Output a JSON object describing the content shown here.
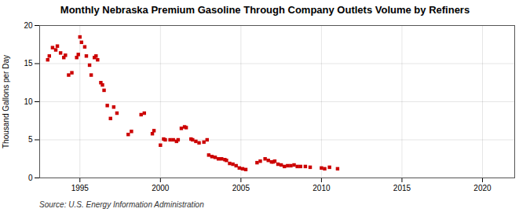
{
  "chart_data": {
    "type": "scatter",
    "title": "Monthly Nebraska Premium Gasoline Through Company Outlets Volume by Refiners",
    "ylabel": "Thousand Gallons per Day",
    "source": "Source: U.S. Energy Information Administration",
    "color": "#cc0000",
    "marker": "square",
    "grid": true,
    "xlim": [
      1992.5,
      2022
    ],
    "ylim": [
      0,
      20
    ],
    "xticks": [
      1995,
      2000,
      2005,
      2010,
      2015,
      2020
    ],
    "yticks": [
      0,
      5,
      10,
      15,
      20
    ],
    "x": [
      1993.0,
      1993.1,
      1993.3,
      1993.5,
      1993.6,
      1993.8,
      1994.0,
      1994.1,
      1994.3,
      1994.5,
      1994.8,
      1994.9,
      1995.0,
      1995.1,
      1995.3,
      1995.4,
      1995.6,
      1995.7,
      1995.9,
      1996.0,
      1996.1,
      1996.3,
      1996.4,
      1996.5,
      1996.7,
      1996.9,
      1997.1,
      1997.3,
      1998.0,
      1998.2,
      1998.8,
      1999.0,
      1999.5,
      1999.6,
      2000.0,
      2000.2,
      2000.3,
      2000.6,
      2000.8,
      2001.0,
      2001.1,
      2001.3,
      2001.5,
      2001.6,
      2001.9,
      2002.0,
      2002.2,
      2002.4,
      2002.7,
      2002.9,
      2003.0,
      2003.2,
      2003.4,
      2003.6,
      2003.8,
      2004.0,
      2004.1,
      2004.3,
      2004.5,
      2004.7,
      2004.9,
      2005.1,
      2005.3,
      2006.0,
      2006.2,
      2006.5,
      2006.7,
      2006.9,
      2007.0,
      2007.1,
      2007.3,
      2007.5,
      2007.7,
      2007.9,
      2008.1,
      2008.3,
      2008.5,
      2008.7,
      2009.0,
      2009.3,
      2010.0,
      2010.2,
      2010.5,
      2011.0
    ],
    "values": [
      15.5,
      16.0,
      17.1,
      16.8,
      17.3,
      16.4,
      15.8,
      16.1,
      13.5,
      13.8,
      15.8,
      16.2,
      18.5,
      17.8,
      17.2,
      16.0,
      14.8,
      13.5,
      15.8,
      16.0,
      15.5,
      12.5,
      12.2,
      11.5,
      9.5,
      7.8,
      9.3,
      8.5,
      5.7,
      6.1,
      8.3,
      8.5,
      5.8,
      6.2,
      4.3,
      5.1,
      5.0,
      5.0,
      5.0,
      4.8,
      5.0,
      6.5,
      6.7,
      6.6,
      5.1,
      5.0,
      4.8,
      4.6,
      4.7,
      5.0,
      3.0,
      2.8,
      2.7,
      2.5,
      2.5,
      2.4,
      2.3,
      1.9,
      1.8,
      1.6,
      1.3,
      1.2,
      1.1,
      2.0,
      2.2,
      2.5,
      2.3,
      2.1,
      2.1,
      2.2,
      1.8,
      1.7,
      1.5,
      1.6,
      1.6,
      1.7,
      1.5,
      1.5,
      1.5,
      1.4,
      1.3,
      1.2,
      1.4,
      1.2
    ]
  }
}
